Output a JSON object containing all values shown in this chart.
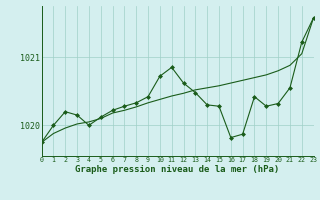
{
  "xlabel": "Graphe pression niveau de la mer (hPa)",
  "background_color": "#d4efef",
  "grid_color": "#a0d0c8",
  "line_color": "#1a5c1a",
  "hours": [
    0,
    1,
    2,
    3,
    4,
    5,
    6,
    7,
    8,
    9,
    10,
    11,
    12,
    13,
    14,
    15,
    16,
    17,
    18,
    19,
    20,
    21,
    22,
    23
  ],
  "pressure": [
    1019.75,
    1020.0,
    1020.2,
    1020.15,
    1020.0,
    1020.12,
    1020.22,
    1020.28,
    1020.33,
    1020.42,
    1020.72,
    1020.85,
    1020.62,
    1020.48,
    1020.3,
    1020.28,
    1019.82,
    1019.87,
    1020.42,
    1020.28,
    1020.32,
    1020.55,
    1021.22,
    1021.58
  ],
  "trend": [
    1019.75,
    1019.88,
    1019.96,
    1020.02,
    1020.05,
    1020.1,
    1020.18,
    1020.22,
    1020.27,
    1020.33,
    1020.38,
    1020.43,
    1020.47,
    1020.52,
    1020.55,
    1020.58,
    1020.62,
    1020.66,
    1020.7,
    1020.74,
    1020.8,
    1020.88,
    1021.05,
    1021.58
  ],
  "yticks": [
    1020,
    1021
  ],
  "ylim": [
    1019.55,
    1021.75
  ],
  "xlim": [
    0,
    23
  ],
  "xticks": [
    0,
    1,
    2,
    3,
    4,
    5,
    6,
    7,
    8,
    9,
    10,
    11,
    12,
    13,
    14,
    15,
    16,
    17,
    18,
    19,
    20,
    21,
    22,
    23
  ],
  "xlabel_fontsize": 6.5,
  "ytick_fontsize": 6,
  "xtick_fontsize": 4.8,
  "marker": "D",
  "markersize": 2.0
}
